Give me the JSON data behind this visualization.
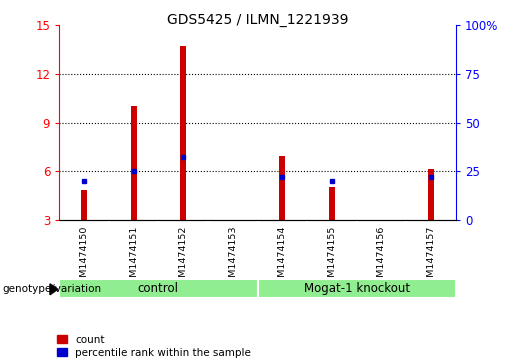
{
  "title": "GDS5425 / ILMN_1221939",
  "samples": [
    "GSM1474150",
    "GSM1474151",
    "GSM1474152",
    "GSM1474153",
    "GSM1474154",
    "GSM1474155",
    "GSM1474156",
    "GSM1474157"
  ],
  "count_values": [
    4.8,
    10.0,
    13.7,
    3.0,
    6.9,
    5.0,
    3.0,
    6.1
  ],
  "percentile_values": [
    20,
    25,
    32,
    0,
    22,
    20,
    0,
    22
  ],
  "ylim_left": [
    3,
    15
  ],
  "yticks_left": [
    3,
    6,
    9,
    12,
    15
  ],
  "ylim_right": [
    0,
    100
  ],
  "yticks_right": [
    0,
    25,
    50,
    75,
    100
  ],
  "ytick_labels_right": [
    "0",
    "25",
    "50",
    "75",
    "100%"
  ],
  "groups": [
    {
      "label": "control",
      "start": 0,
      "end": 4,
      "color": "#90EE90"
    },
    {
      "label": "Mogat-1 knockout",
      "start": 4,
      "end": 8,
      "color": "#90EE90"
    }
  ],
  "group_label_prefix": "genotype/variation",
  "bar_color": "#CC0000",
  "marker_color": "#0000CC",
  "bar_width": 0.12,
  "background_color": "#ffffff",
  "plot_bg_color": "#ffffff",
  "label_area_color": "#c8c8c8",
  "grid_color": "#000000",
  "legend_count_label": "count",
  "legend_percentile_label": "percentile rank within the sample"
}
